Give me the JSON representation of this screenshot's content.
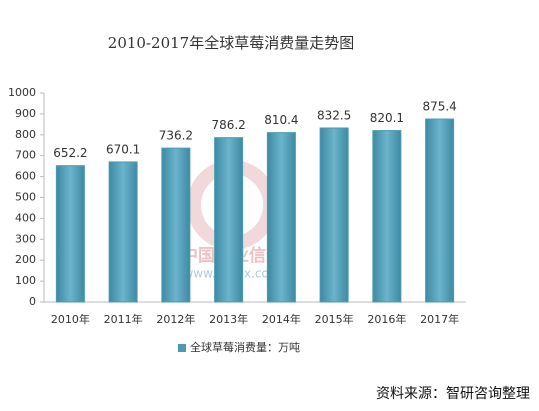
{
  "chart_data": {
    "type": "bar",
    "title": "2010-2017年全球草莓消费量走势图",
    "categories": [
      "2010年",
      "2011年",
      "2012年",
      "2013年",
      "2014年",
      "2015年",
      "2016年",
      "2017年"
    ],
    "series": [
      {
        "name": "全球草莓消费量：万吨",
        "color": "#4a9ab4",
        "values": [
          652.2,
          670.1,
          736.2,
          786.2,
          810.4,
          832.5,
          820.1,
          875.4
        ]
      }
    ],
    "ylim": [
      0,
      1000
    ],
    "yticks": [
      0,
      100,
      200,
      300,
      400,
      500,
      600,
      700,
      800,
      900,
      1000
    ],
    "grid": false,
    "legend": "bottom"
  },
  "watermark": {
    "title": "中国产业信息",
    "url": "www.chyxx.com"
  },
  "source": "资料来源：智研咨询整理"
}
